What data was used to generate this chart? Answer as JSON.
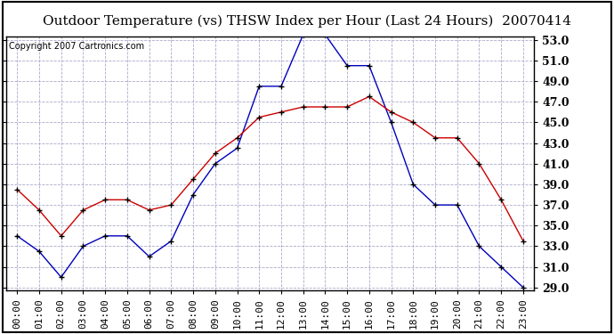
{
  "title": "Outdoor Temperature (vs) THSW Index per Hour (Last 24 Hours)  20070414",
  "copyright": "Copyright 2007 Cartronics.com",
  "hours": [
    "00:00",
    "01:00",
    "02:00",
    "03:00",
    "04:00",
    "05:00",
    "06:00",
    "07:00",
    "08:00",
    "09:00",
    "10:00",
    "11:00",
    "12:00",
    "13:00",
    "14:00",
    "15:00",
    "16:00",
    "17:00",
    "18:00",
    "19:00",
    "20:00",
    "21:00",
    "22:00",
    "23:00"
  ],
  "blue_data": [
    34.0,
    32.5,
    30.0,
    33.0,
    34.0,
    34.0,
    32.0,
    33.5,
    38.0,
    41.0,
    42.5,
    48.5,
    48.5,
    53.5,
    53.5,
    50.5,
    50.5,
    45.0,
    39.0,
    37.0,
    37.0,
    33.0,
    31.0,
    29.0
  ],
  "red_data": [
    38.5,
    36.5,
    34.0,
    36.5,
    37.5,
    37.5,
    36.5,
    37.0,
    39.5,
    42.0,
    43.5,
    45.5,
    46.0,
    46.5,
    46.5,
    46.5,
    47.5,
    46.0,
    45.0,
    43.5,
    43.5,
    41.0,
    37.5,
    33.5
  ],
  "ylim_min": 29.0,
  "ylim_max": 53.0,
  "yticks": [
    29.0,
    31.0,
    33.0,
    35.0,
    37.0,
    39.0,
    41.0,
    43.0,
    45.0,
    47.0,
    49.0,
    51.0,
    53.0
  ],
  "blue_color": "#0000bb",
  "red_color": "#cc0000",
  "marker_color": "#000000",
  "background_color": "#ffffff",
  "grid_color": "#aaaacc",
  "title_fontsize": 11,
  "copyright_fontsize": 7,
  "tick_fontsize": 8,
  "ytick_fontsize": 9
}
